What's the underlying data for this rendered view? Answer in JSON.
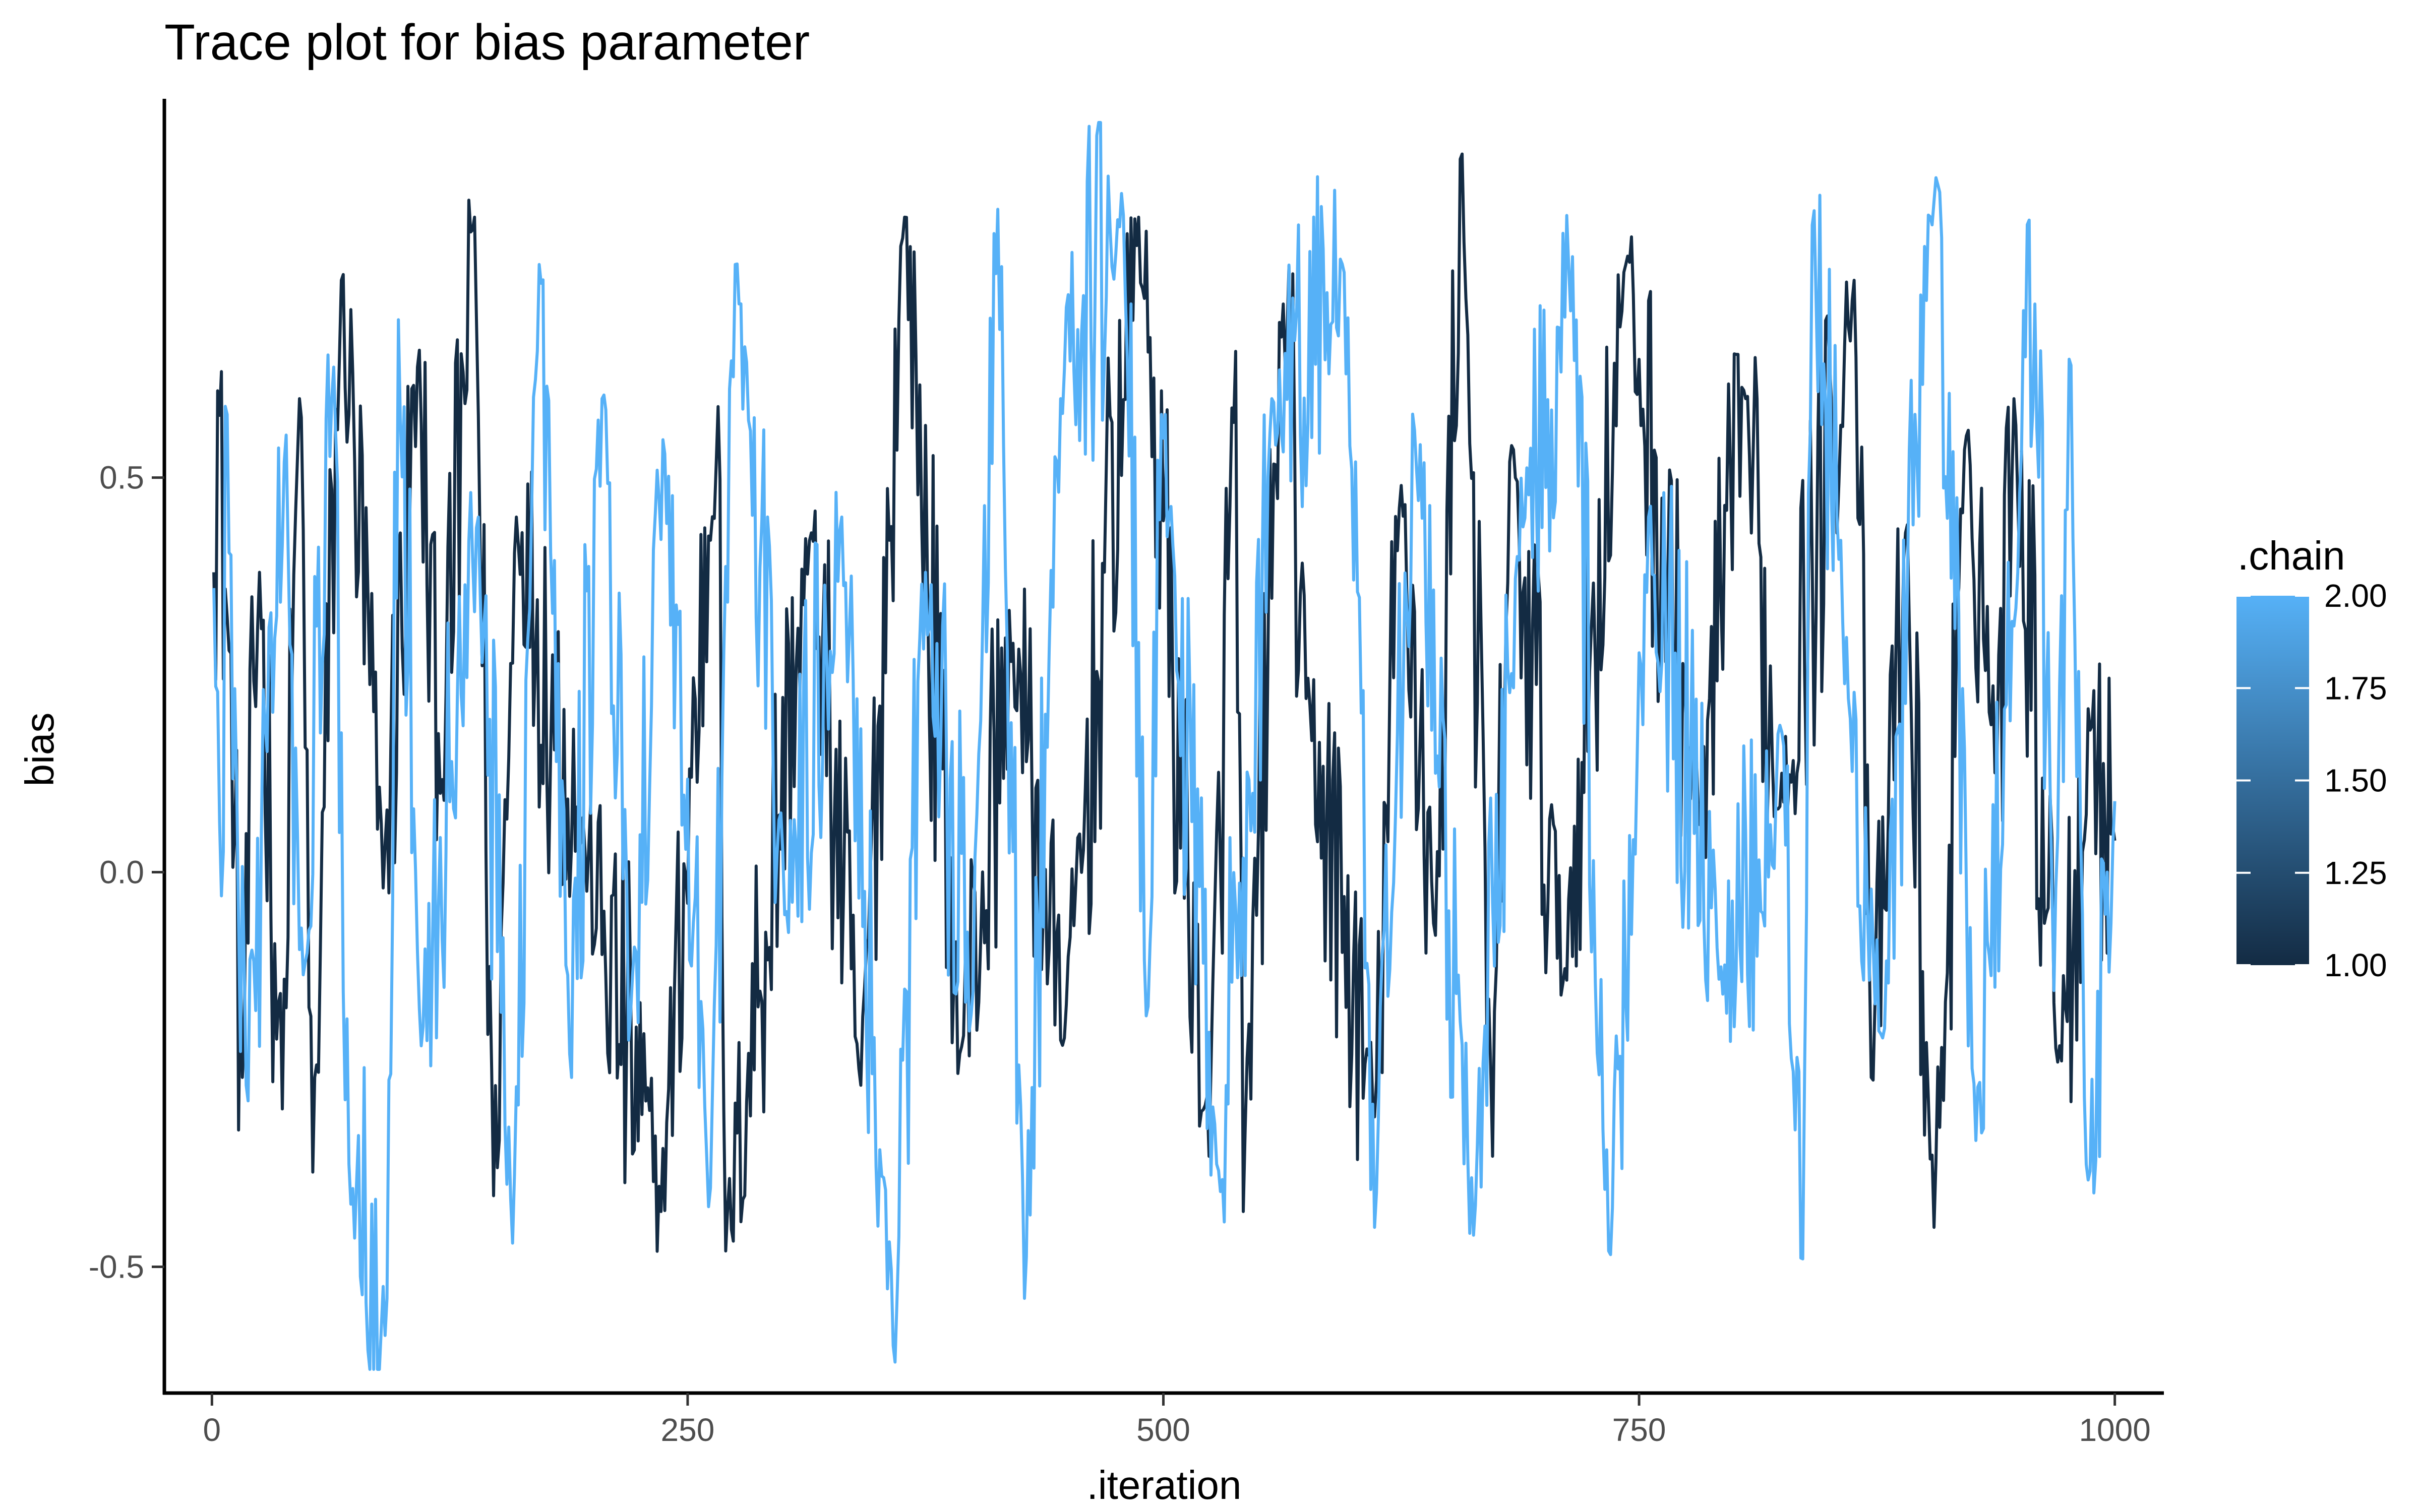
{
  "chart_data": {
    "type": "line",
    "title": "Trace plot for bias parameter",
    "xlabel": ".iteration",
    "ylabel": "bias",
    "xlim": [
      -25,
      1025
    ],
    "ylim": [
      -0.66,
      0.98
    ],
    "x_ticks": [
      0,
      250,
      500,
      750,
      1000
    ],
    "x_tick_labels": [
      "0",
      "250",
      "500",
      "750",
      "1000"
    ],
    "y_ticks": [
      -0.5,
      0.0,
      0.5
    ],
    "y_tick_labels": [
      "-0.5",
      "0.0",
      "0.5"
    ],
    "grid": false,
    "legend": {
      "title": ".chain",
      "position": "right",
      "type": "continuous-colorbar",
      "range": [
        1.0,
        2.0
      ],
      "ticks": [
        "2.00",
        "1.75",
        "1.50",
        "1.25",
        "1.00"
      ],
      "color_low": "#132B43",
      "color_high": "#56B1F7"
    },
    "series": [
      {
        "chain": 1,
        "color": "#132B43",
        "iterations": [
          1,
          1000
        ],
        "summary": {
          "mean": 0.15,
          "min": -0.48,
          "max": 0.92,
          "start": 0.38,
          "end": 0.04
        },
        "points": [
          [
            1,
            0.38
          ],
          [
            3,
            0.61
          ],
          [
            12,
            0.05
          ],
          [
            16,
            -0.26
          ],
          [
            25,
            0.38
          ],
          [
            37,
            -0.3
          ],
          [
            46,
            0.6
          ],
          [
            53,
            -0.38
          ],
          [
            68,
            0.75
          ],
          [
            90,
            -0.02
          ],
          [
            108,
            0.64
          ],
          [
            120,
            0.1
          ],
          [
            138,
            0.83
          ],
          [
            148,
            -0.41
          ],
          [
            160,
            0.45
          ],
          [
            196,
            0.03
          ],
          [
            236,
            -0.43
          ],
          [
            266,
            0.59
          ],
          [
            270,
            -0.48
          ],
          [
            315,
            0.43
          ],
          [
            341,
            -0.27
          ],
          [
            364,
            0.83
          ],
          [
            393,
            -0.23
          ],
          [
            421,
            0.29
          ],
          [
            448,
            -0.21
          ],
          [
            487,
            0.83
          ],
          [
            524,
            -0.36
          ],
          [
            538,
            0.66
          ],
          [
            542,
            -0.43
          ],
          [
            563,
            0.72
          ],
          [
            575,
            0.22
          ],
          [
            611,
            -0.31
          ],
          [
            625,
            0.49
          ],
          [
            643,
            -0.08
          ],
          [
            657,
            0.91
          ],
          [
            673,
            -0.36
          ],
          [
            682,
            0.52
          ],
          [
            710,
            -0.14
          ],
          [
            743,
            0.77
          ],
          [
            782,
            0.06
          ],
          [
            806,
            0.6
          ],
          [
            822,
            0.08
          ],
          [
            863,
            0.75
          ],
          [
            872,
            -0.26
          ],
          [
            890,
            0.43
          ],
          [
            905,
            -0.45
          ],
          [
            923,
            0.56
          ],
          [
            938,
            0.13
          ],
          [
            947,
            0.6
          ],
          [
            971,
            -0.22
          ],
          [
            987,
            0.18
          ],
          [
            1000,
            0.04
          ]
        ]
      },
      {
        "chain": 2,
        "color": "#56B1F7",
        "iterations": [
          1,
          1000
        ],
        "summary": {
          "mean": 0.17,
          "min": -0.6,
          "max": 0.88,
          "start": 0.36,
          "end": 0.09
        },
        "points": [
          [
            1,
            0.36
          ],
          [
            5,
            -0.03
          ],
          [
            8,
            0.58
          ],
          [
            18,
            -0.27
          ],
          [
            38,
            0.52
          ],
          [
            48,
            -0.13
          ],
          [
            64,
            0.64
          ],
          [
            72,
            -0.37
          ],
          [
            92,
            -0.54
          ],
          [
            98,
            0.7
          ],
          [
            110,
            -0.22
          ],
          [
            140,
            0.45
          ],
          [
            158,
            -0.47
          ],
          [
            172,
            0.77
          ],
          [
            188,
            -0.23
          ],
          [
            205,
            0.6
          ],
          [
            220,
            -0.18
          ],
          [
            238,
            0.53
          ],
          [
            262,
            -0.4
          ],
          [
            275,
            0.77
          ],
          [
            302,
            -0.05
          ],
          [
            331,
            0.45
          ],
          [
            358,
            -0.6
          ],
          [
            375,
            0.38
          ],
          [
            400,
            -0.15
          ],
          [
            413,
            0.84
          ],
          [
            427,
            -0.54
          ],
          [
            446,
            0.6
          ],
          [
            478,
            0.86
          ],
          [
            492,
            -0.17
          ],
          [
            500,
            0.55
          ],
          [
            528,
            -0.37
          ],
          [
            547,
            0.1
          ],
          [
            557,
            0.6
          ],
          [
            595,
            0.76
          ],
          [
            611,
            -0.45
          ],
          [
            632,
            0.56
          ],
          [
            663,
            -0.46
          ],
          [
            686,
            0.4
          ],
          [
            715,
            0.78
          ],
          [
            734,
            -0.48
          ],
          [
            755,
            0.45
          ],
          [
            793,
            -0.12
          ],
          [
            826,
            0.16
          ],
          [
            836,
            -0.49
          ],
          [
            841,
            0.82
          ],
          [
            860,
            0.22
          ],
          [
            878,
            -0.21
          ],
          [
            906,
            0.88
          ],
          [
            927,
            -0.34
          ],
          [
            950,
            0.48
          ],
          [
            958,
            0.72
          ],
          [
            968,
            -0.15
          ],
          [
            976,
            0.65
          ],
          [
            986,
            -0.39
          ],
          [
            1000,
            0.09
          ]
        ]
      }
    ]
  }
}
